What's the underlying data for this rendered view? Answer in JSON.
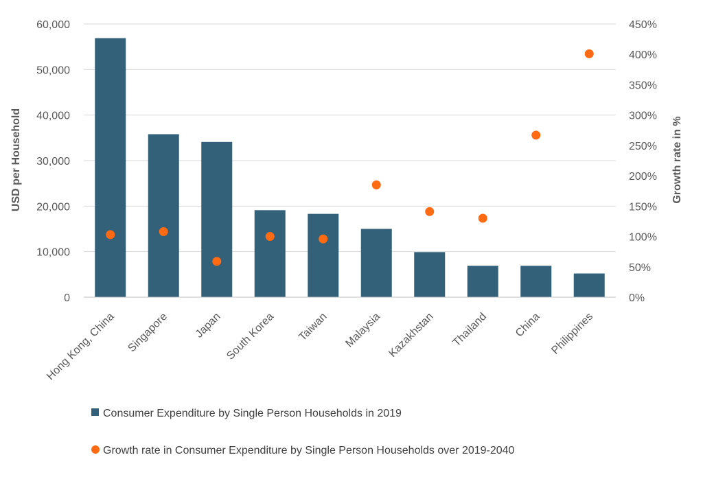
{
  "chart_data": {
    "type": "bar",
    "categories": [
      "Hong Kong, China",
      "Singapore",
      "Japan",
      "South Korea",
      "Taiwan",
      "Malaysia",
      "Kazakhstan",
      "Thailand",
      "China",
      "Philippines"
    ],
    "series": [
      {
        "name": "Consumer Expenditure by Single Person Households in 2019",
        "type": "bar",
        "axis": "left",
        "color": "#336179",
        "values": [
          56900,
          35800,
          34100,
          19100,
          18300,
          15000,
          9900,
          6900,
          6900,
          5200
        ]
      },
      {
        "name": "Growth rate in Consumer Expenditure by Single Person Households over 2019-2040",
        "type": "scatter",
        "axis": "right",
        "color": "#FF6A13",
        "values": [
          103,
          108,
          59,
          100,
          96,
          185,
          141,
          130,
          267,
          401
        ]
      }
    ],
    "ylabel": "USD per Household",
    "y2label": "Growth rate in %",
    "ylim": [
      0,
      60000
    ],
    "y2lim": [
      0,
      450
    ],
    "yticks": [
      "0",
      "10,000",
      "20,000",
      "30,000",
      "40,000",
      "50,000",
      "60,000"
    ],
    "y2ticks": [
      "0%",
      "50%",
      "100%",
      "150%",
      "200%",
      "250%",
      "300%",
      "350%",
      "400%",
      "450%"
    ],
    "grid": true,
    "legend_position": "bottom"
  }
}
